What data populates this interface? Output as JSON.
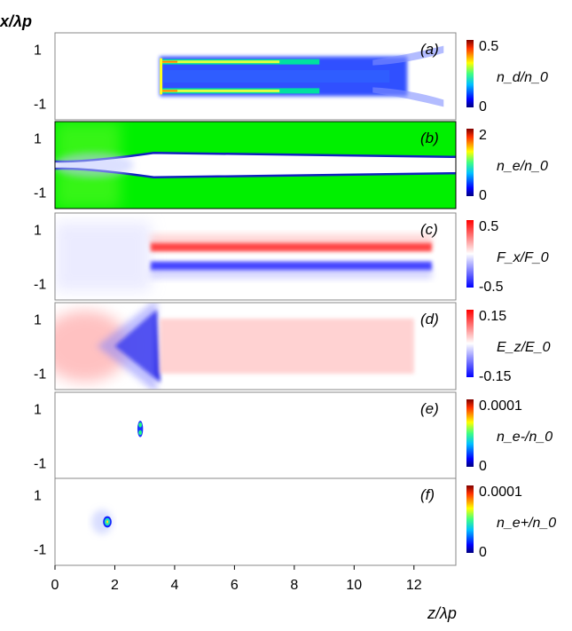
{
  "chart_data": {
    "type": "heatmap",
    "description_axis": {
      "ylabel": "x/λp",
      "xlabel": "z/λp",
      "xlim": [
        0,
        13.4
      ],
      "ylim": [
        -1.6,
        1.6
      ],
      "xticks": [
        "0",
        "2",
        "4",
        "6",
        "8",
        "10",
        "12"
      ],
      "yticks": [
        "1",
        "-1"
      ]
    },
    "panels": [
      {
        "id": "a",
        "label": "(a)",
        "quantity": "n_d/n_0",
        "cbar": {
          "max": "0.5",
          "min": "0",
          "colormap": "jet"
        },
        "features": [
          {
            "shape": "channel-walls",
            "z_start": 3.5,
            "z_end": 12.4,
            "x_outer": 0.6,
            "x_inner": 0.4
          }
        ]
      },
      {
        "id": "b",
        "label": "(b)",
        "quantity": "n_e/n_0",
        "cbar": {
          "max": "2",
          "min": "0",
          "colormap": "jet"
        },
        "features": [
          {
            "shape": "cavity",
            "background_value": 1.0,
            "x_halfwidth": 0.3,
            "z_taper_start": 1.0,
            "z_taper_end": 3.3
          }
        ]
      },
      {
        "id": "c",
        "label": "(c)",
        "quantity": "F_x/F_0",
        "cbar": {
          "max": "0.5",
          "min": "-0.5",
          "colormap": "bwr"
        },
        "features": [
          {
            "shape": "field-bands",
            "z_start": 3.2,
            "z_end": 12.6,
            "x_positive": 0.35,
            "x_negative": -0.35
          }
        ]
      },
      {
        "id": "d",
        "label": "(d)",
        "quantity": "E_z/E_0",
        "cbar": {
          "max": "0.15",
          "min": "-0.15",
          "colormap": "bwr"
        },
        "features": [
          {
            "shape": "field-wedge",
            "z_start": 2.0,
            "z_end": 3.4,
            "value": -0.15
          },
          {
            "shape": "field-plateau",
            "z_start": 3.5,
            "z_end": 12.0,
            "value": 0.04
          }
        ]
      },
      {
        "id": "e",
        "label": "(e)",
        "quantity": "n_e-/n_0",
        "cbar": {
          "max": "0.0001",
          "min": "0",
          "colormap": "jet"
        },
        "features": [
          {
            "shape": "blob",
            "z": 2.85,
            "x": 0.25,
            "extent": 0.3
          }
        ]
      },
      {
        "id": "f",
        "label": "(f)",
        "quantity": "n_e+/n_0",
        "cbar": {
          "max": "0.0001",
          "min": "0",
          "colormap": "jet"
        },
        "features": [
          {
            "shape": "blob",
            "z": 1.75,
            "x": 0.0,
            "extent": 0.35
          }
        ]
      }
    ]
  },
  "colors": {
    "jet": [
      "#00007f",
      "#0000ff",
      "#0080ff",
      "#00ffff",
      "#80ff80",
      "#ffff00",
      "#ff8000",
      "#ff0000",
      "#7f0000"
    ],
    "bwr": [
      "#0000ff",
      "#8080ff",
      "#ffffff",
      "#ff8080",
      "#ff0000"
    ],
    "frame": "#7a2a6a",
    "background_green": "#00f000"
  }
}
